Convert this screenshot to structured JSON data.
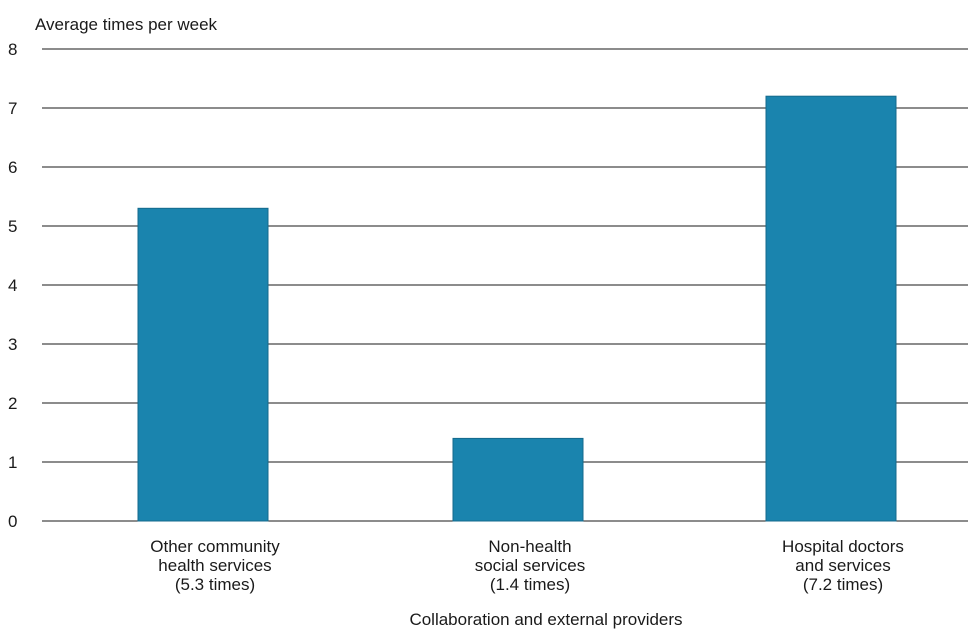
{
  "chart_data": {
    "type": "bar",
    "title": "",
    "ylabel": "Average times per week",
    "xlabel": "Collaboration and external providers",
    "ylim": [
      0,
      8
    ],
    "yticks": [
      0,
      1,
      2,
      3,
      4,
      5,
      6,
      7,
      8
    ],
    "grid": true,
    "categories": [
      [
        "Other community",
        "health services",
        "(5.3 times)"
      ],
      [
        "Non-health",
        "social services",
        "(1.4 times)"
      ],
      [
        "Hospital doctors",
        "and services",
        "(7.2 times)"
      ]
    ],
    "values": [
      5.3,
      1.4,
      7.2
    ],
    "colors": {
      "bar": "#1a84ae",
      "bar_edge": "#146a8c",
      "grid": "#1a1a1a"
    }
  }
}
